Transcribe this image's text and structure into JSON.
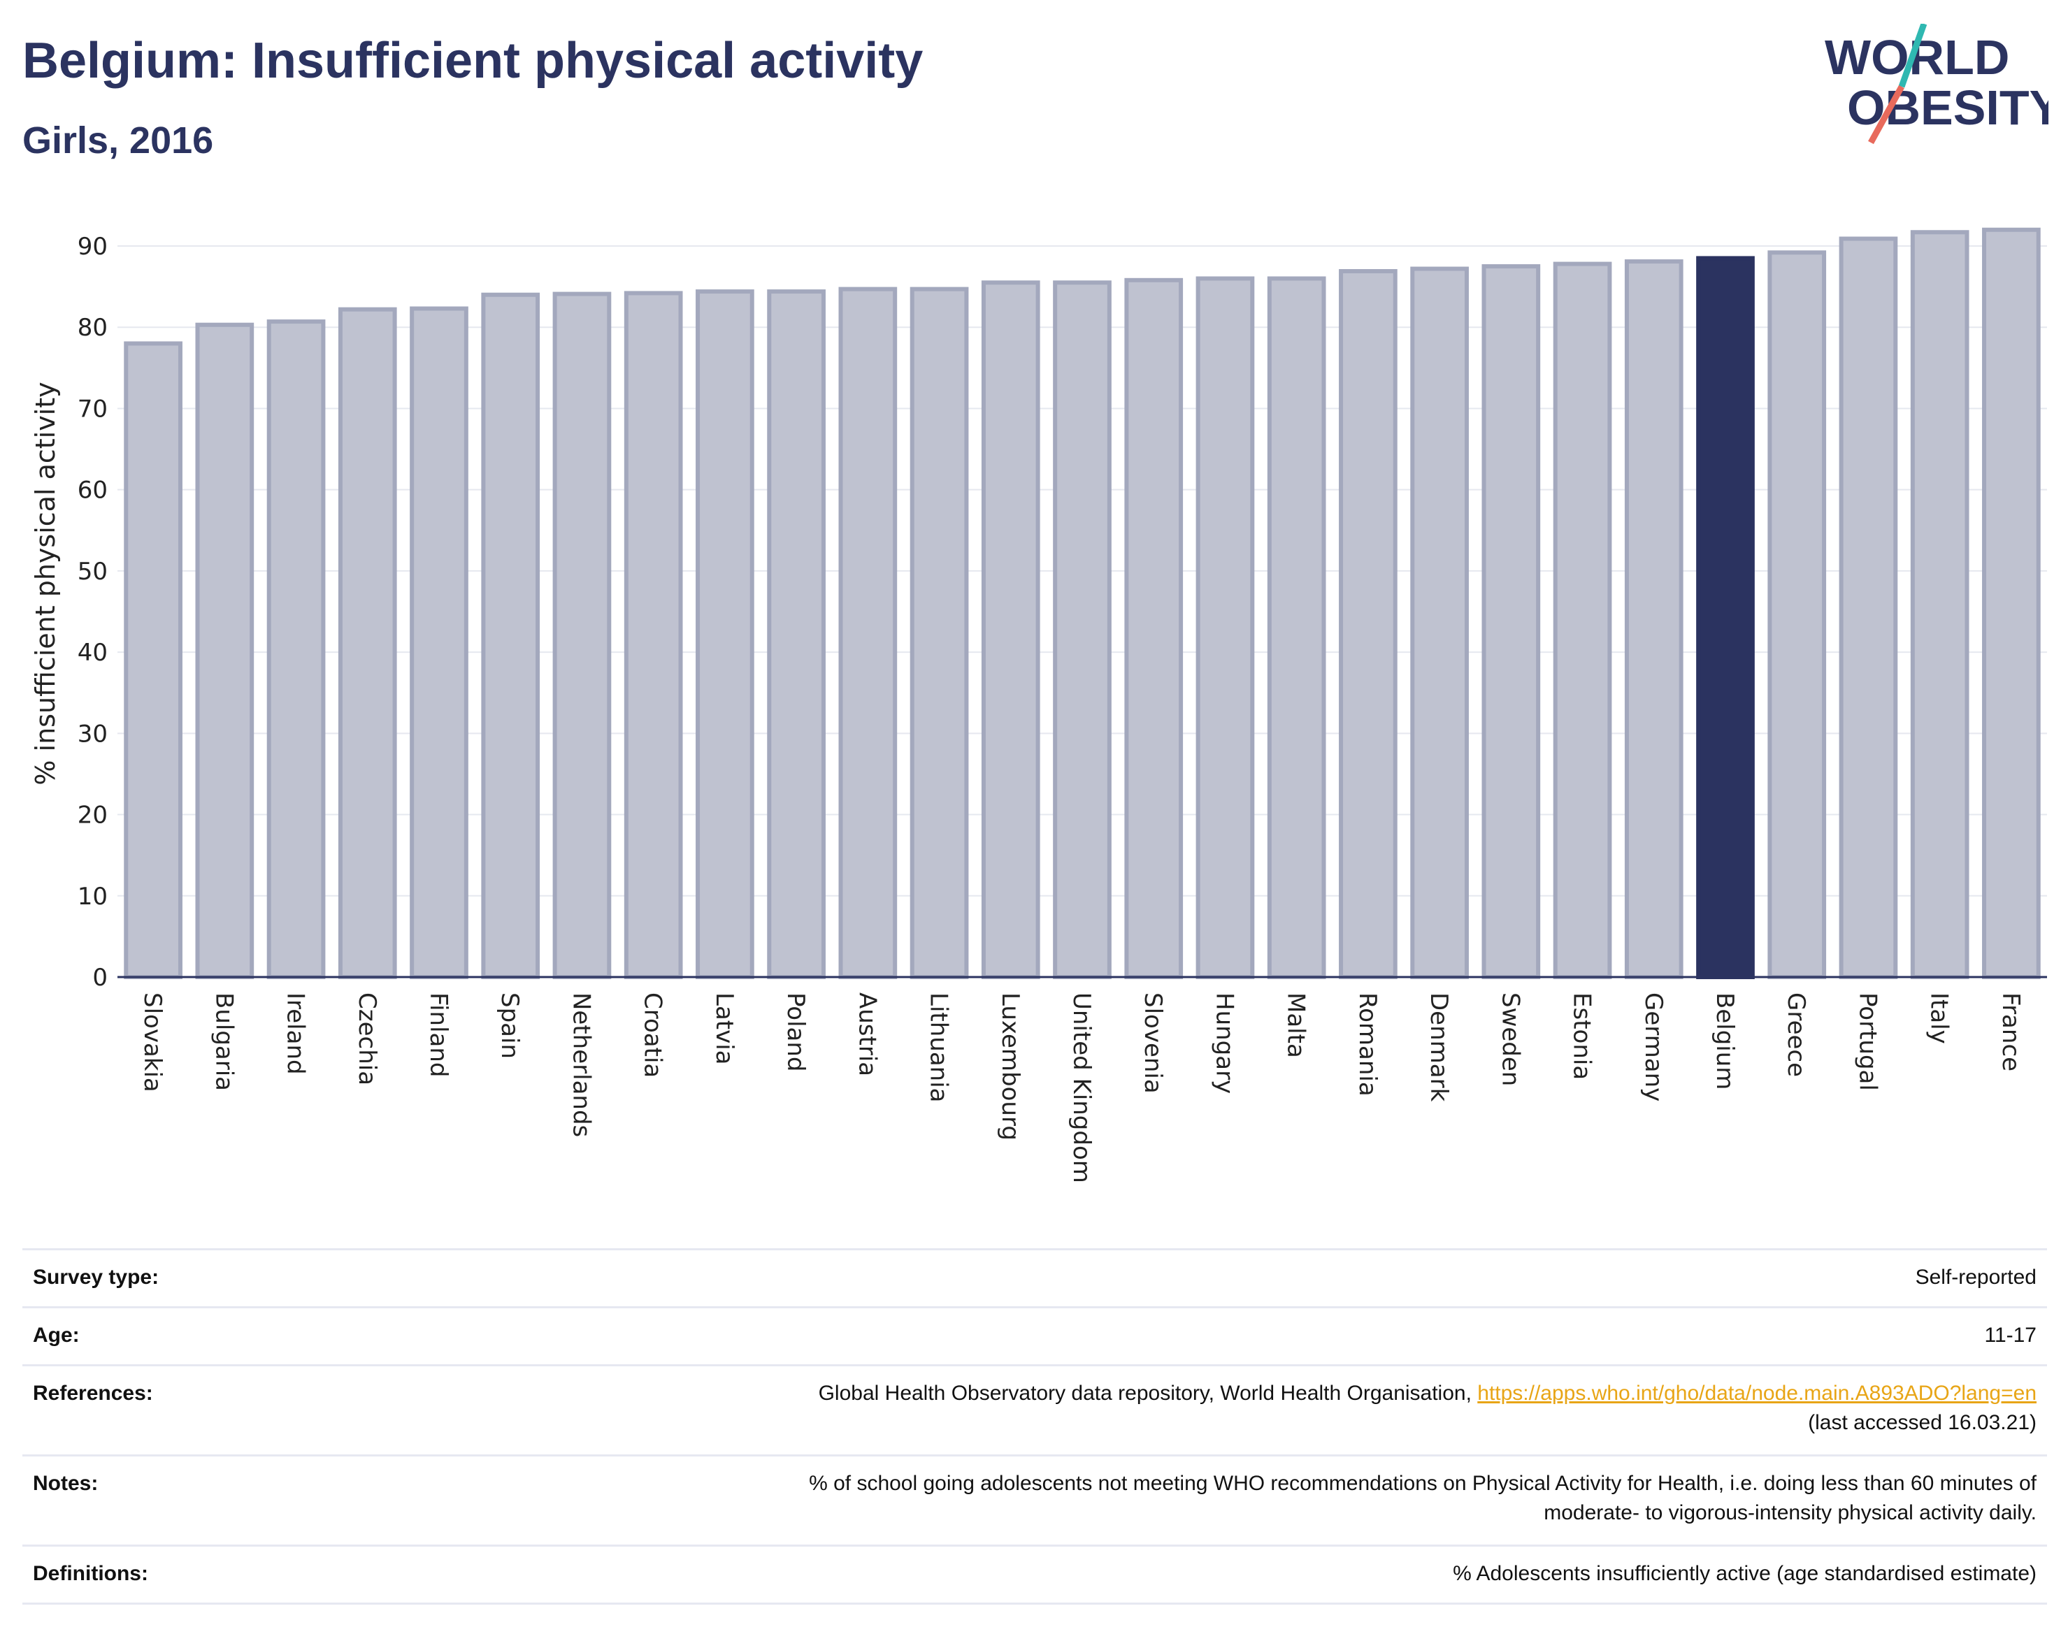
{
  "header": {
    "title": "Belgium: Insufficient physical activity",
    "subtitle": "Girls, 2016",
    "logo_line1": "WORLD",
    "logo_line2": "OBESITY"
  },
  "colors": {
    "bar_fill": "#bfc2d0",
    "bar_stroke": "#a3a8bd",
    "highlight": "#2b3360",
    "text": "#2b3360",
    "link": "#e8a516",
    "logo_teal": "#2fb8b1",
    "logo_red": "#e86a5c"
  },
  "chart_data": {
    "type": "bar",
    "title": "Belgium: Insufficient physical activity",
    "subtitle": "Girls, 2016",
    "xlabel": "",
    "ylabel": "% insufficient physical activity",
    "ylim": [
      0,
      92
    ],
    "yticks": [
      0,
      10,
      20,
      30,
      40,
      50,
      60,
      70,
      80,
      90
    ],
    "grid": true,
    "highlight": "Belgium",
    "categories": [
      "Slovakia",
      "Bulgaria",
      "Ireland",
      "Czechia",
      "Finland",
      "Spain",
      "Netherlands",
      "Croatia",
      "Latvia",
      "Poland",
      "Austria",
      "Lithuania",
      "Luxembourg",
      "United Kingdom",
      "Slovenia",
      "Hungary",
      "Malta",
      "Romania",
      "Denmark",
      "Sweden",
      "Estonia",
      "Germany",
      "Belgium",
      "Greece",
      "Portugal",
      "Italy",
      "France"
    ],
    "values": [
      78.0,
      80.3,
      80.7,
      82.2,
      82.3,
      84.0,
      84.1,
      84.2,
      84.4,
      84.4,
      84.7,
      84.7,
      85.5,
      85.5,
      85.8,
      86.0,
      86.0,
      86.9,
      87.2,
      87.5,
      87.8,
      88.1,
      88.5,
      89.2,
      90.9,
      91.7,
      92.0
    ]
  },
  "info": {
    "survey_type": {
      "label": "Survey type:",
      "value": "Self-reported"
    },
    "age": {
      "label": "Age:",
      "value": "11-17"
    },
    "references": {
      "label": "References:",
      "text": "Global Health Observatory data repository, World Health Organisation, ",
      "link": "https://apps.who.int/gho/data/node.main.A893ADO?lang=en",
      "accessed": "(last accessed 16.03.21)"
    },
    "notes": {
      "label": "Notes:",
      "line1": "% of school going adolescents not meeting WHO recommendations on Physical Activity for Health, i.e. doing less than 60 minutes of",
      "line2": "moderate- to vigorous-intensity physical activity daily."
    },
    "definitions": {
      "label": "Definitions:",
      "value": "% Adolescents insufficiently active (age standardised estimate)"
    }
  }
}
